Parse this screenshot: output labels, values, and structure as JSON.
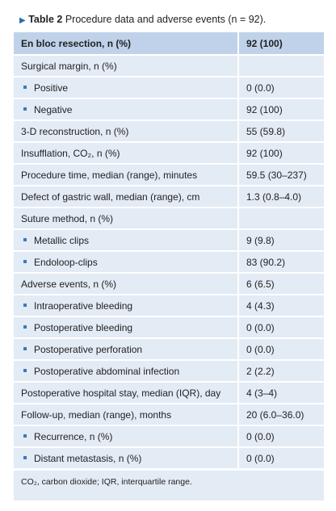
{
  "table": {
    "label": "Table 2",
    "caption": "Procedure data and adverse events (n = 92).",
    "header": [
      "En bloc resection, n (%)",
      "92 (100)"
    ],
    "rows": [
      [
        "Surgical margin, n (%)"
      ],
      [
        "Positive",
        "0 (0.0)"
      ],
      [
        "Negative",
        "92 (100)"
      ],
      [
        "3-D reconstruction, n (%)",
        "55 (59.8)"
      ],
      [
        "Insufflation, CO₂, n (%)",
        "92 (100)"
      ],
      [
        "Procedure time, median (range), minutes",
        "59.5 (30–237)"
      ],
      [
        "Defect of gastric wall, median (range), cm",
        "1.3 (0.8–4.0)"
      ],
      [
        "Suture method, n (%)"
      ],
      [
        "Metallic clips",
        "9 (9.8)"
      ],
      [
        "Endoloop-clips",
        "83 (90.2)"
      ],
      [
        "Adverse events, n (%)",
        "6 (6.5)"
      ],
      [
        "Intraoperative bleeding",
        "4 (4.3)"
      ],
      [
        "Postoperative bleeding",
        "0 (0.0)"
      ],
      [
        "Postoperative perforation",
        "0 (0.0)"
      ],
      [
        "Postoperative abdominal infection",
        "2 (2.2)"
      ],
      [
        "Postoperative hospital stay, median (IQR), day",
        "4 (3–4)"
      ],
      [
        "Follow-up, median (range), months",
        "20 (6.0–36.0)"
      ],
      [
        "Recurrence, n (%)",
        "0 (0.0)"
      ],
      [
        "Distant metastasis, n (%)",
        "0 (0.0)"
      ]
    ],
    "footnote": "CO₂, carbon dioxide; IQR, interquartile range."
  }
}
